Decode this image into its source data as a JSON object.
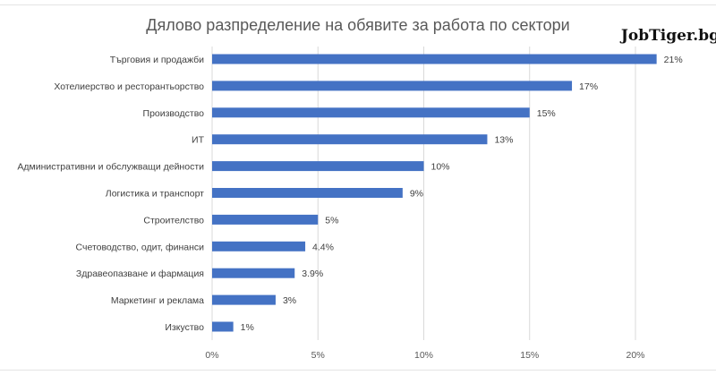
{
  "chart_data": {
    "type": "bar",
    "orientation": "horizontal",
    "title": "Дялово разпределение на обявите за работа по сектори",
    "categories": [
      "Търговия и продажби",
      "Хотелиерство и ресторантьорство",
      "Производство",
      "ИТ",
      "Административни и обслужващи дейности",
      "Логистика и транспорт",
      "Строителство",
      "Счетоводство, одит, финанси",
      "Здравеопазване и фармация",
      "Маркетинг и реклама",
      "Изкуство"
    ],
    "values": [
      21,
      17,
      15,
      13,
      10,
      9,
      5,
      4.4,
      3.9,
      3,
      1
    ],
    "data_labels": [
      "21%",
      "17%",
      "15%",
      "13%",
      "10%",
      "9%",
      "5%",
      "4.4%",
      "3.9%",
      "3%",
      "1%"
    ],
    "x_ticks": [
      "0%",
      "5%",
      "10%",
      "15%",
      "20%"
    ],
    "xlim": [
      0,
      24
    ],
    "grid": "vertical",
    "legend": "none",
    "bar_color": "#4472c4"
  },
  "watermark": "JobTiger.bg"
}
